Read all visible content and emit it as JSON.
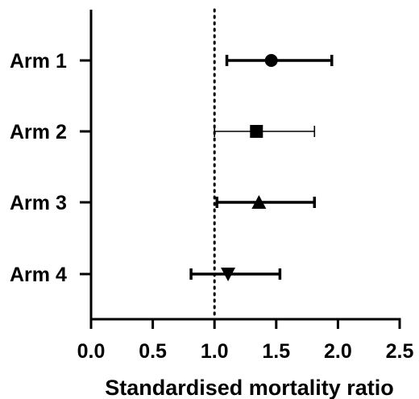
{
  "chart_data": {
    "type": "forest",
    "xlabel": "Standardised mortality ratio",
    "xlim": [
      0,
      2.5
    ],
    "xticks": [
      "0.0",
      "0.5",
      "1.0",
      "1.5",
      "2.0",
      "2.5"
    ],
    "reference_line": 1.0,
    "grid": false,
    "categories": [
      "Arm 1",
      "Arm 2",
      "Arm 3",
      "Arm 4"
    ],
    "series": [
      {
        "category": "Arm 1",
        "estimate": 1.46,
        "lower": 1.1,
        "upper": 1.95,
        "marker": "circle",
        "bold_ci": true
      },
      {
        "category": "Arm 2",
        "estimate": 1.34,
        "lower": 1.0,
        "upper": 1.81,
        "marker": "square",
        "bold_ci": false
      },
      {
        "category": "Arm 3",
        "estimate": 1.36,
        "lower": 1.02,
        "upper": 1.81,
        "marker": "triangle-up",
        "bold_ci": true
      },
      {
        "category": "Arm 4",
        "estimate": 1.11,
        "lower": 0.81,
        "upper": 1.53,
        "marker": "triangle-down",
        "bold_ci": true
      }
    ]
  }
}
